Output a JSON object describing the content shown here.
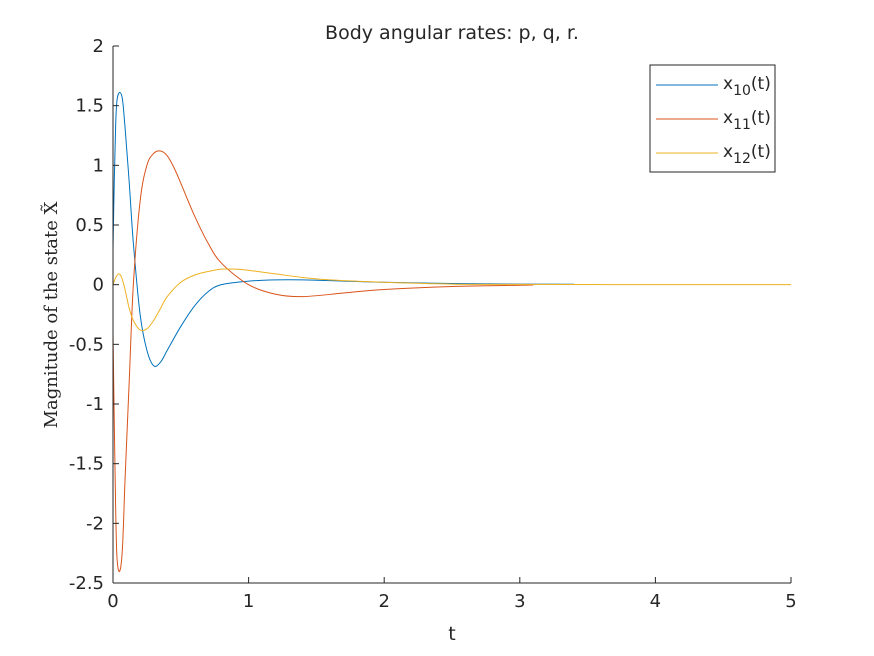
{
  "chart_data": {
    "type": "line",
    "title": "Body angular rates: p, q, r.",
    "xlabel": "t",
    "ylabel": "Magnitude of the state X̃",
    "xlim": [
      0,
      5
    ],
    "ylim": [
      -2.5,
      2
    ],
    "xticks": [
      0,
      1,
      2,
      3,
      4,
      5
    ],
    "xtick_labels": [
      "0",
      "1",
      "2",
      "3",
      "4",
      "5"
    ],
    "yticks": [
      2,
      1.5,
      1,
      0.5,
      0,
      -0.5,
      -1,
      -1.5,
      -2,
      -2.5
    ],
    "ytick_labels": [
      "2",
      "1.5",
      "1",
      "0.5",
      "0",
      "-0.5",
      "-1",
      "-1.5",
      "-2",
      "-2.5"
    ],
    "grid": false,
    "legend_position": "top-right",
    "series": [
      {
        "name": "x10(t)",
        "legend": {
          "base": "x",
          "sub": "10",
          "suffix": "(t)"
        },
        "color": "#0072BD",
        "x": [
          0,
          0.01,
          0.02,
          0.03,
          0.05,
          0.07,
          0.09,
          0.12,
          0.15,
          0.2,
          0.25,
          0.3,
          0.35,
          0.4,
          0.5,
          0.6,
          0.7,
          0.8,
          1.0,
          1.2,
          1.4,
          1.7,
          2.0,
          2.5,
          3.0,
          3.4
        ],
        "y": [
          0.3,
          0.9,
          1.35,
          1.55,
          1.61,
          1.55,
          1.3,
          0.85,
          0.35,
          -0.25,
          -0.55,
          -0.68,
          -0.65,
          -0.55,
          -0.35,
          -0.18,
          -0.06,
          0.0,
          0.03,
          0.04,
          0.04,
          0.03,
          0.02,
          0.01,
          0.005,
          0.003
        ]
      },
      {
        "name": "x11(t)",
        "legend": {
          "base": "x",
          "sub": "11",
          "suffix": "(t)"
        },
        "color": "#D95319",
        "x": [
          0,
          0.01,
          0.02,
          0.03,
          0.05,
          0.07,
          0.09,
          0.12,
          0.15,
          0.2,
          0.25,
          0.3,
          0.35,
          0.4,
          0.45,
          0.5,
          0.6,
          0.7,
          0.8,
          1.0,
          1.2,
          1.4,
          1.7,
          2.0,
          2.5,
          3.0,
          3.1
        ],
        "y": [
          -0.4,
          -1.2,
          -1.9,
          -2.3,
          -2.4,
          -2.2,
          -1.6,
          -0.8,
          0.0,
          0.7,
          1.0,
          1.1,
          1.12,
          1.08,
          0.98,
          0.85,
          0.58,
          0.35,
          0.18,
          0.0,
          -0.08,
          -0.1,
          -0.07,
          -0.04,
          -0.015,
          -0.005,
          -0.003
        ]
      },
      {
        "name": "x12(t)",
        "legend": {
          "base": "x",
          "sub": "12",
          "suffix": "(t)"
        },
        "color": "#EDB120",
        "x": [
          0,
          0.02,
          0.04,
          0.06,
          0.08,
          0.1,
          0.12,
          0.15,
          0.2,
          0.25,
          0.3,
          0.35,
          0.4,
          0.5,
          0.6,
          0.7,
          0.8,
          0.9,
          1.0,
          1.2,
          1.4,
          1.6,
          2.0,
          2.5,
          3.0,
          3.5,
          4.0,
          5.0
        ],
        "y": [
          0.0,
          0.06,
          0.09,
          0.07,
          0.0,
          -0.1,
          -0.2,
          -0.3,
          -0.38,
          -0.37,
          -0.3,
          -0.2,
          -0.1,
          0.02,
          0.08,
          0.11,
          0.13,
          0.13,
          0.12,
          0.09,
          0.06,
          0.04,
          0.02,
          0.005,
          0.002,
          0.001,
          0.0,
          0.0
        ]
      }
    ]
  }
}
